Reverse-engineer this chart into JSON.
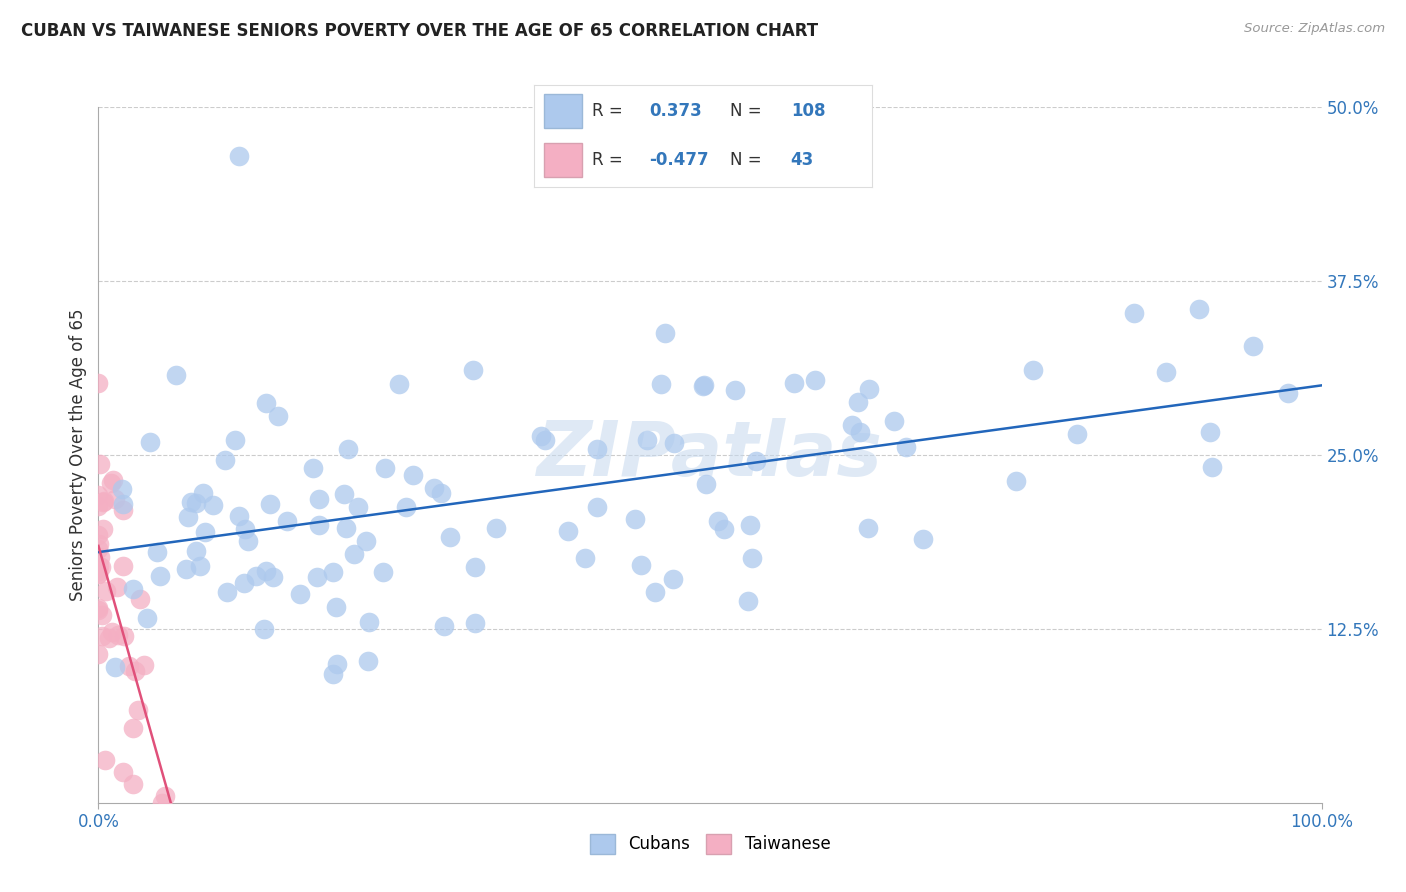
{
  "title": "CUBAN VS TAIWANESE SENIORS POVERTY OVER THE AGE OF 65 CORRELATION CHART",
  "source": "Source: ZipAtlas.com",
  "ylabel": "Seniors Poverty Over the Age of 65",
  "background_color": "#ffffff",
  "grid_color": "#cccccc",
  "cubans_color": "#adc9ed",
  "taiwanese_color": "#f4afc3",
  "line_color": "#2266bb",
  "taiwanese_line_color": "#e0507a",
  "R_cubans": 0.373,
  "N_cubans": 108,
  "R_taiwanese": -0.477,
  "N_taiwanese": 43,
  "xlim": [
    0.0,
    1.0
  ],
  "ylim": [
    0.0,
    0.5
  ],
  "ytick_values": [
    0.125,
    0.25,
    0.375,
    0.5
  ],
  "ytick_labels": [
    "12.5%",
    "25.0%",
    "37.5%",
    "50.0%"
  ],
  "xtick_values": [
    0.0,
    1.0
  ],
  "xtick_labels": [
    "0.0%",
    "100.0%"
  ],
  "watermark": "ZIPatlas",
  "legend_cubans_label": "Cubans",
  "legend_taiwanese_label": "Taiwanese",
  "legend_r_cubans": "0.373",
  "legend_n_cubans": "108",
  "legend_r_taiwanese": "-0.477",
  "legend_n_taiwanese": "43"
}
